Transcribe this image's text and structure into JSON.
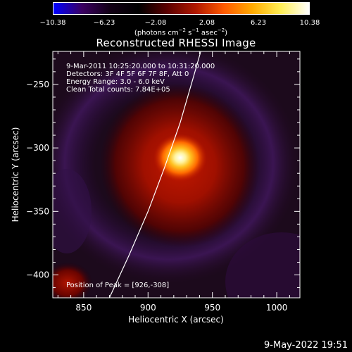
{
  "colorbar": {
    "ticks": [
      "−10.38",
      "−6.23",
      "−2.08",
      "2.08",
      "6.23",
      "10.38"
    ],
    "tick_values": [
      -10.38,
      -6.23,
      -2.08,
      2.08,
      6.23,
      10.38
    ],
    "range": [
      -10.38,
      10.38
    ],
    "colors": [
      "#0000ff",
      "#3b0061",
      "#120015",
      "#000000",
      "#5a0000",
      "#b01800",
      "#ff5a00",
      "#ffaa00",
      "#ffee55",
      "#ffffff"
    ]
  },
  "units": {
    "prefix": "(photons cm",
    "exp1": "−2",
    "mid1": " s",
    "exp2": "−1",
    "mid2": " asec",
    "exp3": "−2",
    "suffix": ")"
  },
  "chart_data": {
    "type": "heatmap",
    "title": "Reconstructed RHESSI Image",
    "xlabel": "Heliocentric X (arcsec)",
    "ylabel": "Heliocentric Y (arcsec)",
    "xlim": [
      826,
      1018
    ],
    "ylim": [
      -418,
      -224
    ],
    "xticks": [
      850,
      900,
      950,
      1000
    ],
    "xtick_labels": [
      "850",
      "900",
      "950",
      "1000"
    ],
    "yticks": [
      -250,
      -300,
      -350,
      -400
    ],
    "ytick_labels": [
      "−250",
      "−300",
      "−350",
      "−400"
    ],
    "annotations": [
      "9-Mar-2011 10:25:20.000 to 10:31:20.000",
      "Detectors: 3F 4F 5F 6F 7F 8F, Att 0",
      "Energy Range: 3.0 - 6.0 keV",
      "Clean     Total counts: 7.84E+05"
    ],
    "peak_label": "Position of Peak = [926,-308]",
    "peak": [
      926,
      -308
    ],
    "limb_curve": [
      [
        870,
        -418
      ],
      [
        885,
        -385
      ],
      [
        900,
        -350
      ],
      [
        913,
        -315
      ],
      [
        925,
        -280
      ],
      [
        935,
        -245
      ],
      [
        941,
        -224
      ]
    ]
  },
  "footer": {
    "date": "9-May-2022 19:51"
  }
}
